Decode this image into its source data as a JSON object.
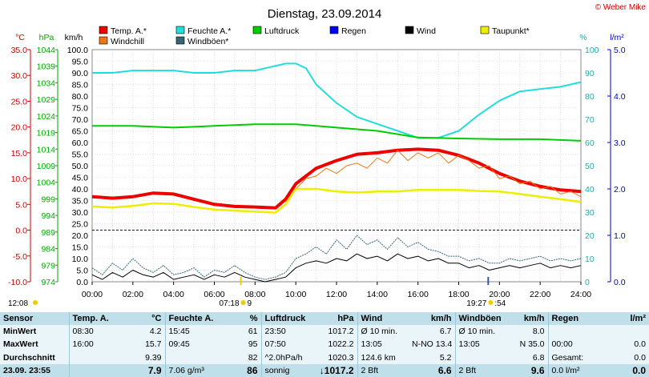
{
  "header": {
    "title": "Dienstag, 23.09.2014",
    "copyright": "© Weber Mike"
  },
  "axis_units": {
    "temp": "°C",
    "pressure": "hPa",
    "speed": "km/h",
    "humidity": "%",
    "rain": "l/m²"
  },
  "legend": [
    {
      "label": "Temp. A.*",
      "color": "#ee0000"
    },
    {
      "label": "Feuchte A.*",
      "color": "#22dddd"
    },
    {
      "label": "Luftdruck",
      "color": "#00cc00"
    },
    {
      "label": "Regen",
      "color": "#0000ee"
    },
    {
      "label": "Wind",
      "color": "#000000"
    },
    {
      "label": "Taupunkt*",
      "color": "#eeee00"
    },
    {
      "label": "Windchill",
      "color": "#ee7711"
    },
    {
      "label": "Windböen*",
      "color": "#336677"
    }
  ],
  "sun": {
    "sunrise": "07:18",
    "sunrise_sub": "9",
    "sunset": "19:27",
    "sunset_sub": ":54",
    "corner_time": "12:08"
  },
  "chart_data": {
    "type": "line",
    "x_ticks": [
      "00:00",
      "02:00",
      "04:00",
      "06:00",
      "08:00",
      "10:00",
      "12:00",
      "14:00",
      "16:00",
      "18:00",
      "20:00",
      "22:00",
      "24:00"
    ],
    "xlim": [
      0,
      24
    ],
    "axes": {
      "temp_ticks": [
        "35.0",
        "30.0",
        "25.0",
        "20.0",
        "15.0",
        "10.0",
        "5.0",
        "0.0",
        "-5.0",
        "-10.0"
      ],
      "temp_lim": [
        -10,
        35
      ],
      "pressure_ticks": [
        "1044",
        "1039",
        "1034",
        "1029",
        "1024",
        "1019",
        "1014",
        "1009",
        "1004",
        "999",
        "994",
        "989",
        "984",
        "979",
        "974"
      ],
      "pressure_lim": [
        974,
        1044
      ],
      "speed_ticks": [
        "100.0",
        "95.0",
        "90.0",
        "85.0",
        "80.0",
        "75.0",
        "70.0",
        "65.0",
        "60.0",
        "55.0",
        "50.0",
        "45.0",
        "40.0",
        "35.0",
        "30.0",
        "25.0",
        "20.0",
        "15.0",
        "10.0",
        "5.0",
        "0.0"
      ],
      "speed_lim": [
        0,
        100
      ],
      "humidity_ticks": [
        "100",
        "90",
        "80",
        "70",
        "60",
        "50",
        "40",
        "30",
        "20",
        "10",
        "0"
      ],
      "humidity_lim": [
        0,
        100
      ],
      "rain_ticks": [
        "5.0",
        "4.0",
        "3.0",
        "2.0",
        "1.0",
        "0.0"
      ],
      "rain_lim": [
        0,
        5
      ]
    },
    "series": [
      {
        "name": "Feuchte A.*",
        "axis": "humidity",
        "color": "#22dddd",
        "x": [
          0,
          1,
          2,
          3,
          4,
          5,
          6,
          7,
          8,
          9,
          9.5,
          10,
          10.5,
          11,
          12,
          13,
          14,
          15,
          16,
          17,
          18,
          19,
          20,
          21,
          22,
          23,
          24
        ],
        "y": [
          90,
          90,
          91,
          91,
          91,
          90,
          90,
          91,
          91,
          93,
          94,
          94,
          92,
          85,
          77,
          71,
          68,
          65,
          62,
          62,
          65,
          72,
          78,
          82,
          83,
          84,
          86
        ]
      },
      {
        "name": "Luftdruck",
        "axis": "pressure",
        "color": "#00cc00",
        "x": [
          0,
          2,
          4,
          6,
          8,
          10,
          11,
          12,
          14,
          16,
          18,
          20,
          22,
          24
        ],
        "y": [
          1021,
          1021,
          1020.5,
          1021,
          1021.5,
          1021.5,
          1021,
          1020.5,
          1019.5,
          1017.5,
          1017.2,
          1017,
          1017,
          1016.5
        ]
      },
      {
        "name": "Temp. A.*",
        "axis": "temp",
        "color": "#ee0000",
        "x": [
          0,
          1,
          2,
          3,
          4,
          5,
          6,
          7,
          8,
          9,
          9.5,
          10,
          11,
          12,
          13,
          14,
          15,
          16,
          17,
          18,
          19,
          20,
          21,
          22,
          23,
          24
        ],
        "y": [
          6.5,
          6.2,
          6.5,
          7.2,
          7.0,
          6.0,
          5.0,
          4.6,
          4.5,
          4.3,
          6.0,
          9.0,
          12.0,
          13.5,
          14.7,
          15.0,
          15.5,
          15.7,
          15.5,
          14.5,
          13.0,
          11.0,
          9.5,
          8.5,
          7.8,
          7.5
        ]
      },
      {
        "name": "Windchill",
        "axis": "temp",
        "color": "#ee7711",
        "x": [
          9.5,
          10,
          10.5,
          11,
          11.5,
          12,
          12.5,
          13,
          13.5,
          14,
          14.5,
          15,
          15.5,
          16,
          16.5,
          17,
          17.5,
          18,
          18.5,
          19,
          19.5,
          20,
          20.5,
          21,
          21.5,
          22,
          22.5,
          23,
          23.5,
          24
        ],
        "y": [
          5.5,
          8.0,
          10.0,
          10.5,
          12.0,
          11.0,
          12.5,
          13.0,
          12.0,
          14.0,
          13.0,
          15.5,
          13.5,
          15.0,
          14.0,
          15.0,
          13.0,
          14.5,
          13.5,
          12.0,
          12.5,
          10.0,
          10.5,
          9.0,
          9.5,
          8.0,
          8.5,
          7.0,
          7.5,
          6.5
        ]
      },
      {
        "name": "Taupunkt*",
        "axis": "temp",
        "color": "#eeee00",
        "x": [
          0,
          1,
          2,
          3,
          4,
          5,
          6,
          7,
          8,
          9,
          9.5,
          10,
          11,
          12,
          13,
          14,
          15,
          16,
          17,
          18,
          19,
          20,
          21,
          22,
          23,
          24
        ],
        "y": [
          4.6,
          4.4,
          4.7,
          5.2,
          5.1,
          4.5,
          4.0,
          3.8,
          3.6,
          3.4,
          5.0,
          8.0,
          8.0,
          7.5,
          7.3,
          7.5,
          7.5,
          7.8,
          7.8,
          7.8,
          7.6,
          7.5,
          7.0,
          6.5,
          6.0,
          5.5
        ]
      },
      {
        "name": "Wind",
        "axis": "speed",
        "color": "#000000",
        "x": [
          0,
          0.5,
          1,
          1.5,
          2,
          2.5,
          3,
          3.5,
          4,
          4.5,
          5,
          5.5,
          6,
          6.5,
          7,
          7.5,
          8,
          8.5,
          9,
          9.5,
          10,
          10.5,
          11,
          11.5,
          12,
          12.5,
          13,
          13.5,
          14,
          14.5,
          15,
          15.5,
          16,
          16.5,
          17,
          17.5,
          18,
          18.5,
          19,
          19.5,
          20,
          20.5,
          21,
          21.5,
          22,
          22.5,
          23,
          23.5,
          24
        ],
        "y": [
          3,
          1,
          4,
          2,
          5,
          3,
          2,
          4,
          1,
          2,
          3,
          1,
          3,
          2,
          4,
          2,
          1,
          0,
          1,
          2,
          6,
          8,
          9,
          8,
          10,
          9,
          12,
          10,
          11,
          9,
          12,
          10,
          11,
          9,
          10,
          8,
          8,
          6,
          7,
          5,
          6,
          7,
          6,
          7,
          8,
          6,
          7,
          6,
          7
        ]
      },
      {
        "name": "Windböen*",
        "axis": "speed",
        "color": "#336677",
        "x": [
          0,
          0.5,
          1,
          1.5,
          2,
          2.5,
          3,
          3.5,
          4,
          4.5,
          5,
          5.5,
          6,
          6.5,
          7,
          7.5,
          8,
          8.5,
          9,
          9.5,
          10,
          10.5,
          11,
          11.5,
          12,
          12.5,
          13,
          13.5,
          14,
          14.5,
          15,
          15.5,
          16,
          16.5,
          17,
          17.5,
          18,
          18.5,
          19,
          19.5,
          20,
          20.5,
          21,
          21.5,
          22,
          22.5,
          23,
          23.5,
          24
        ],
        "y": [
          6,
          3,
          8,
          5,
          10,
          6,
          4,
          7,
          3,
          4,
          6,
          2,
          5,
          4,
          7,
          4,
          2,
          1,
          2,
          4,
          10,
          12,
          15,
          12,
          18,
          14,
          20,
          16,
          18,
          14,
          19,
          15,
          17,
          14,
          13,
          11,
          11,
          9,
          10,
          8,
          8,
          10,
          9,
          10,
          11,
          9,
          10,
          9,
          10
        ]
      }
    ],
    "reference_lines": [
      {
        "axis": "temp",
        "value": 0,
        "color": "#0000cc",
        "style": "dashed"
      }
    ]
  },
  "table": {
    "header": [
      "Sensor",
      "Temp. A.",
      "°C",
      "Feuchte A.",
      "%",
      "Luftdruck",
      "hPa",
      "Wind",
      "km/h",
      "Windböen",
      "km/h",
      "Regen",
      "l/m²"
    ],
    "rows": [
      [
        "MinWert",
        "08:30",
        "4.2",
        "15:45",
        "61",
        "23:50",
        "1017.2",
        "Ø 10 min.",
        "6.7",
        "Ø 10 min.",
        "8.0",
        "",
        ""
      ],
      [
        "MaxWert",
        "16:00",
        "15.7",
        "09:45",
        "95",
        "07:50",
        "1022.2",
        "13:05",
        "N-NO 13.4",
        "13:05",
        "N 35.0",
        "00:00",
        "0.0"
      ],
      [
        "Durchschnitt",
        "",
        "9.39",
        "",
        "82",
        "^2.0hPa/h",
        "1020.3",
        "124.6 km",
        "5.2",
        "",
        "6.8",
        "Gesamt:",
        "0.0"
      ],
      [
        "23.09. 23:55",
        "",
        "7.9",
        "7.06 g/m³",
        "86",
        "sonnig",
        "↓1017.2",
        "2 Bft",
        "6.6",
        "2 Bft",
        "9.6",
        "0.0 l/m²",
        "0.0"
      ]
    ]
  }
}
